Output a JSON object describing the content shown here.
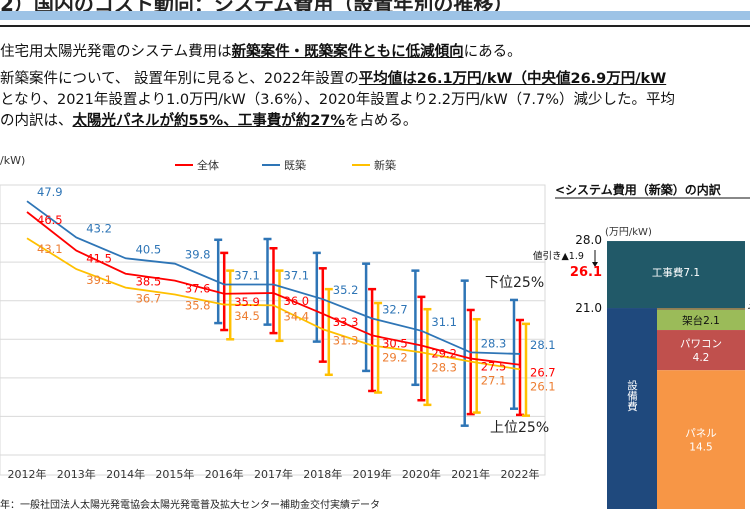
{
  "header": {
    "title": "2）国内のコスト動向：システム費用（設置年別の推移）"
  },
  "summary": {
    "line1_pre": "住宅用太陽光発電のシステム費用は",
    "line1_bold": "新築案件・既築案件ともに低減傾向",
    "line1_post": "にある。",
    "line2_pre": "新築案件について、 設置年別に見ると、2022年設置の",
    "line2_bold": "平均値は26.1万円/kW（中央値26.9万円/kW",
    "line3": "となり、2021年設置より1.0万円/kW（3.6%）、2020年設置より2.2万円/kW（7.7%）減少した。平均",
    "line4_pre": "の内訳は、",
    "line4_bold": "太陽光パネルが約55%、工事費が約27%",
    "line4_post": "を占める。"
  },
  "source": "年：一般社団法人太陽光発電協会太陽光発電普及拡大センター補助金交付実績データ",
  "chart_data": [
    {
      "type": "line",
      "ylabel": "/kW)",
      "ylim": [
        15,
        50
      ],
      "grid": true,
      "legend": "top",
      "categories": [
        "2012年",
        "2013年",
        "2014年",
        "2015年",
        "2016年",
        "2017年",
        "2018年",
        "2019年",
        "2020年",
        "2021年",
        "2022年"
      ],
      "series": [
        {
          "name": "全体",
          "color": "#ff0000",
          "label_color": "#ff0000",
          "values": [
            46.5,
            41.5,
            38.5,
            37.6,
            35.9,
            36.0,
            33.3,
            30.5,
            29.2,
            27.5,
            26.7
          ],
          "whisker_low": [
            null,
            null,
            null,
            null,
            31.2,
            30.8,
            27.1,
            23.3,
            22.1,
            20.3,
            20.2
          ],
          "whisker_high": [
            null,
            null,
            null,
            null,
            41.2,
            41.8,
            39.2,
            36.5,
            35.5,
            33.8,
            32.5
          ]
        },
        {
          "name": "既築",
          "color": "#2e75b6",
          "label_color": "#2e75b6",
          "values": [
            47.9,
            43.2,
            40.5,
            39.8,
            37.1,
            37.1,
            35.2,
            32.7,
            31.1,
            28.3,
            28.1
          ],
          "whisker_low": [
            null,
            null,
            null,
            null,
            32.1,
            31.9,
            29.7,
            25.9,
            24.1,
            18.8,
            21.0
          ],
          "whisker_high": [
            null,
            null,
            null,
            null,
            42.9,
            43.0,
            41.2,
            39.8,
            38.9,
            37.6,
            35.1
          ]
        },
        {
          "name": "新築",
          "color": "#ffc000",
          "label_color": "#ed7d31",
          "values": [
            43.1,
            39.1,
            36.7,
            35.8,
            34.5,
            34.4,
            31.3,
            29.2,
            28.3,
            27.1,
            26.1
          ],
          "whisker_low": [
            null,
            null,
            null,
            null,
            30.0,
            29.8,
            25.4,
            23.1,
            21.5,
            20.5,
            20.1
          ],
          "whisker_high": [
            null,
            null,
            null,
            null,
            38.9,
            38.9,
            36.5,
            34.7,
            33.9,
            32.6,
            32.0
          ]
        }
      ],
      "annotations": {
        "lower": "下位25%",
        "upper": "上位25%"
      }
    },
    {
      "type": "bar",
      "title": "<システム費用（新築）の内訳",
      "ylabel": "(万円/kW)",
      "axis_labels": [
        "28.0",
        "21.0"
      ],
      "discount_label": "値引き▲1.9",
      "net_value": "26.1",
      "segments": [
        {
          "name": "工事費",
          "value": 7.1,
          "label": "工事費7.1",
          "color": "#215968"
        },
        {
          "name": "設備費",
          "value": 21.0,
          "label": "設備費",
          "color": "#1f497d"
        },
        {
          "name": "その他",
          "value": 0.2,
          "label": "そ",
          "color": "#8c7a4f"
        },
        {
          "name": "架台",
          "value": 2.1,
          "label": "架台2.1",
          "color": "#9bbb59"
        },
        {
          "name": "パワコン",
          "value": 4.2,
          "label": "パワコン",
          "value_label": "4.2",
          "color": "#c0504d"
        },
        {
          "name": "パネル",
          "value": 14.5,
          "label": "パネル",
          "value_label": "14.5",
          "color": "#f79646"
        }
      ]
    }
  ]
}
